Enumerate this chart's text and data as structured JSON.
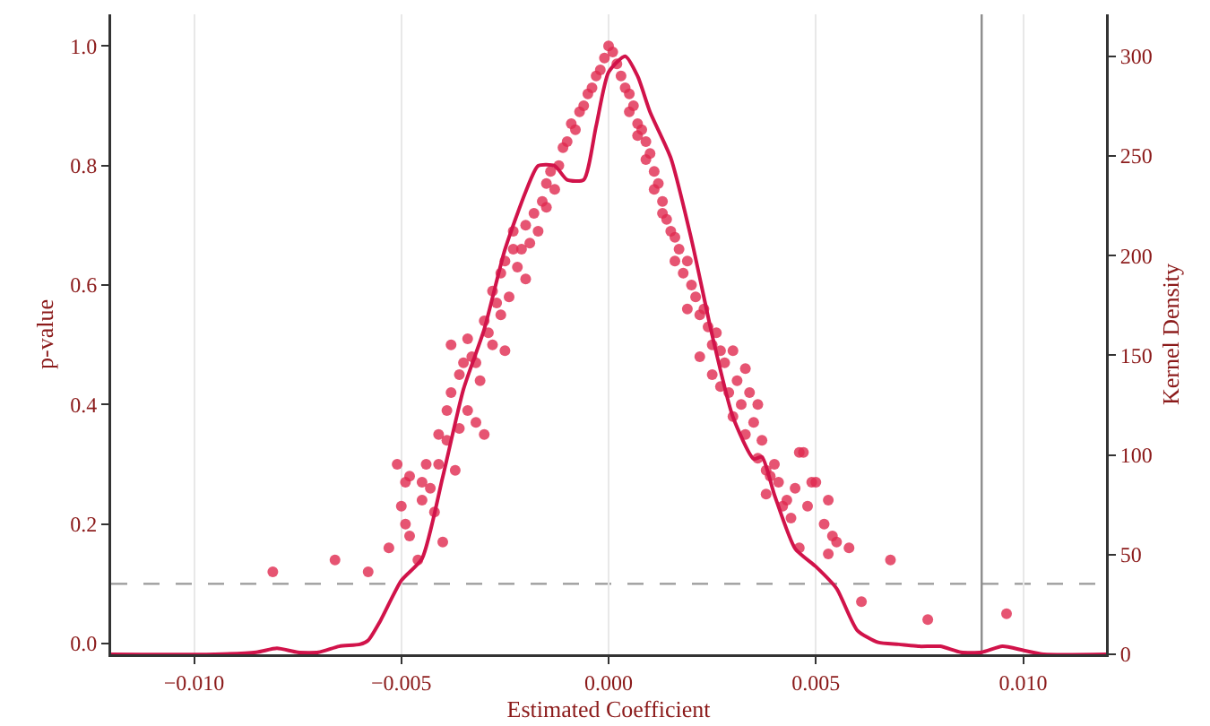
{
  "chart_data": {
    "type": "scatter",
    "xlabel": "Estimated Coefficient",
    "ylabel": "p-value",
    "y2label": "Kernel Density",
    "xlim": [
      -0.012,
      0.012
    ],
    "ylim": [
      -0.018,
      1.053
    ],
    "y2lim": [
      0,
      321
    ],
    "xticks": [
      {
        "value": -0.01,
        "label": "−0.010"
      },
      {
        "value": -0.005,
        "label": "−0.005"
      },
      {
        "value": 0,
        "label": "0.000"
      },
      {
        "value": 0.005,
        "label": "0.005"
      },
      {
        "value": 0.01,
        "label": "0.010"
      }
    ],
    "yticks": [
      {
        "value": 0,
        "label": "0.0"
      },
      {
        "value": 0.2,
        "label": "0.2"
      },
      {
        "value": 0.4,
        "label": "0.4"
      },
      {
        "value": 0.6,
        "label": "0.6"
      },
      {
        "value": 0.8,
        "label": "0.8"
      },
      {
        "value": 1,
        "label": "1.0"
      }
    ],
    "y2ticks": [
      0,
      50,
      100,
      150,
      200,
      250,
      300
    ],
    "grid": "x",
    "marker": "circle",
    "ref_lines": [
      {
        "axis": "y",
        "value": 0.1,
        "color": "#999999",
        "line_style": "dashed"
      },
      {
        "axis": "x",
        "value": 0.009,
        "color": "#8c8c8c",
        "line_style": "solid"
      }
    ],
    "series": [
      {
        "color": "#e0294f",
        "x": [
          -0.0081,
          -0.0066,
          -0.0058,
          -0.0053,
          -0.0051,
          -0.005,
          -0.0049,
          -0.0049,
          -0.0048,
          -0.0048,
          -0.0046,
          -0.0045,
          -0.0045,
          -0.0044,
          -0.0043,
          -0.0042,
          -0.0041,
          -0.0041,
          -0.004,
          -0.0039,
          -0.0039,
          -0.0038,
          -0.0038,
          -0.0037,
          -0.0036,
          -0.0036,
          -0.0035,
          -0.0034,
          -0.0034,
          -0.0033,
          -0.0032,
          -0.0032,
          -0.0031,
          -0.003,
          -0.003,
          -0.0029,
          -0.0028,
          -0.0028,
          -0.0027,
          -0.0026,
          -0.0026,
          -0.0025,
          -0.0025,
          -0.0024,
          -0.0023,
          -0.0023,
          -0.0022,
          -0.0021,
          -0.002,
          -0.002,
          -0.0019,
          -0.0018,
          -0.0017,
          -0.0016,
          -0.0015,
          -0.0015,
          -0.0014,
          -0.0013,
          -0.0012,
          -0.0011,
          -0.001,
          -0.0009,
          -0.0008,
          -0.0007,
          -0.0006,
          -0.0005,
          -0.0004,
          -0.0003,
          -0.0002,
          -0.0001,
          0,
          0.0001,
          0.0002,
          0.0003,
          0.0004,
          0.0005,
          0.0005,
          0.0006,
          0.0007,
          0.0007,
          0.0008,
          0.0009,
          0.0009,
          0.001,
          0.0011,
          0.0011,
          0.0012,
          0.0013,
          0.0013,
          0.0014,
          0.0015,
          0.0016,
          0.0016,
          0.0017,
          0.0018,
          0.0019,
          0.0019,
          0.002,
          0.0021,
          0.0022,
          0.0022,
          0.0023,
          0.0024,
          0.0025,
          0.0025,
          0.0026,
          0.0027,
          0.0027,
          0.0028,
          0.0029,
          0.003,
          0.003,
          0.0031,
          0.0032,
          0.0033,
          0.0033,
          0.0034,
          0.0035,
          0.0036,
          0.0036,
          0.0037,
          0.0038,
          0.0038,
          0.0039,
          0.004,
          0.0041,
          0.0042,
          0.0043,
          0.0044,
          0.0045,
          0.0046,
          0.0046,
          0.0047,
          0.0048,
          0.0049,
          0.005,
          0.0052,
          0.0053,
          0.0053,
          0.0054,
          0.0055,
          0.0058,
          0.0061,
          0.0068,
          0.0077,
          0.0096
        ],
        "values": [
          0.12,
          0.14,
          0.12,
          0.16,
          0.3,
          0.23,
          0.2,
          0.27,
          0.18,
          0.28,
          0.14,
          0.27,
          0.24,
          0.3,
          0.26,
          0.22,
          0.3,
          0.35,
          0.17,
          0.34,
          0.39,
          0.42,
          0.5,
          0.29,
          0.45,
          0.36,
          0.47,
          0.51,
          0.39,
          0.48,
          0.47,
          0.37,
          0.44,
          0.54,
          0.35,
          0.52,
          0.59,
          0.5,
          0.57,
          0.55,
          0.62,
          0.49,
          0.64,
          0.58,
          0.66,
          0.69,
          0.63,
          0.66,
          0.7,
          0.61,
          0.67,
          0.72,
          0.69,
          0.74,
          0.77,
          0.73,
          0.79,
          0.76,
          0.8,
          0.83,
          0.84,
          0.87,
          0.86,
          0.89,
          0.9,
          0.92,
          0.93,
          0.95,
          0.96,
          0.98,
          1,
          0.99,
          0.97,
          0.95,
          0.93,
          0.92,
          0.89,
          0.9,
          0.87,
          0.85,
          0.86,
          0.84,
          0.81,
          0.82,
          0.79,
          0.76,
          0.77,
          0.74,
          0.72,
          0.71,
          0.69,
          0.68,
          0.64,
          0.66,
          0.62,
          0.64,
          0.56,
          0.6,
          0.58,
          0.55,
          0.48,
          0.56,
          0.53,
          0.5,
          0.45,
          0.52,
          0.49,
          0.43,
          0.47,
          0.42,
          0.49,
          0.38,
          0.44,
          0.4,
          0.35,
          0.46,
          0.42,
          0.37,
          0.31,
          0.4,
          0.34,
          0.25,
          0.29,
          0.28,
          0.3,
          0.27,
          0.23,
          0.24,
          0.21,
          0.26,
          0.16,
          0.32,
          0.32,
          0.23,
          0.27,
          0.27,
          0.2,
          0.15,
          0.24,
          0.18,
          0.17,
          0.16,
          0.07,
          0.14,
          0.04,
          0.05
        ]
      },
      {
        "type": "line",
        "axis": "y2",
        "color": "#d1134a",
        "marker": "none",
        "x": [
          -0.012,
          -0.0095,
          -0.0085,
          -0.008,
          -0.0075,
          -0.007,
          -0.0065,
          -0.006,
          -0.0058,
          -0.0055,
          -0.005,
          -0.0045,
          -0.004,
          -0.0035,
          -0.003,
          -0.0025,
          -0.002,
          -0.0017,
          -0.0013,
          -0.001,
          -0.0006,
          -0.0003,
          0,
          0.0004,
          0.0007,
          0.001,
          0.0015,
          0.002,
          0.0025,
          0.003,
          0.0035,
          0.0037,
          0.004,
          0.0045,
          0.005,
          0.0055,
          0.006,
          0.0065,
          0.007,
          0.0075,
          0.008,
          0.0085,
          0.009,
          0.0095,
          0.01,
          0.0105,
          0.012
        ],
        "values": [
          0,
          0,
          1,
          3,
          1,
          1,
          4,
          5,
          7,
          17,
          37,
          48,
          89,
          133,
          163,
          203,
          232,
          245,
          245,
          238,
          238,
          265,
          292,
          300,
          290,
          272,
          249,
          208,
          160,
          119,
          98,
          99,
          80,
          53,
          44,
          33,
          12,
          6,
          5,
          4,
          4,
          1,
          1,
          4,
          2,
          0,
          0
        ]
      }
    ]
  }
}
